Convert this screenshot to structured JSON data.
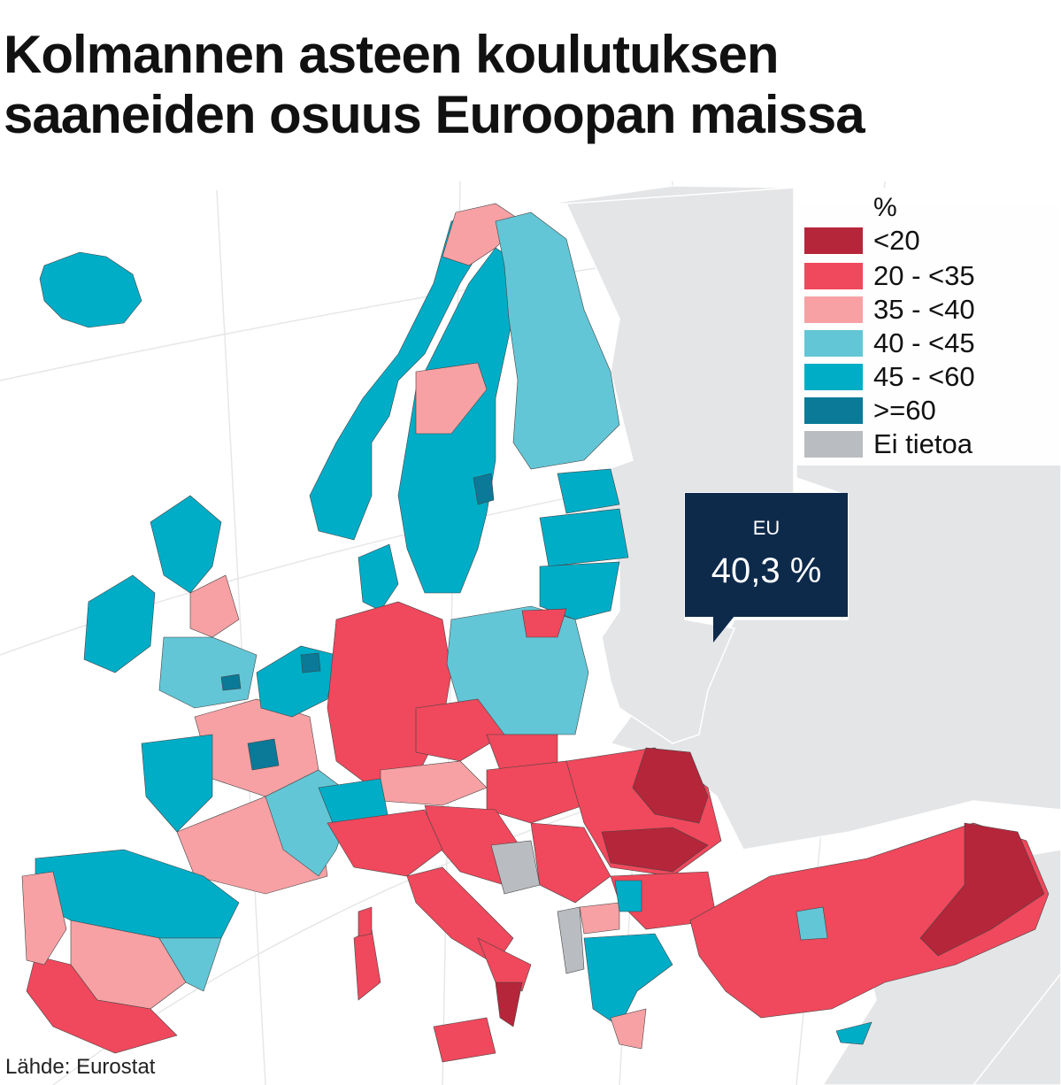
{
  "title_lines": [
    "Kolmannen asteen koulutuksen",
    "saaneiden osuus Euroopan maissa"
  ],
  "legend": {
    "unit": "%",
    "items": [
      {
        "label": "<20",
        "color": "#b5263a"
      },
      {
        "label": "20 - <35",
        "color": "#f0485c"
      },
      {
        "label": "35 - <40",
        "color": "#f7a1a4"
      },
      {
        "label": "40 - <45",
        "color": "#62c6d6"
      },
      {
        "label": "45 - <60",
        "color": "#00adc7"
      },
      {
        "label": ">=60",
        "color": "#0a7a98"
      },
      {
        "label": "Ei tietoa",
        "color": "#b9bcc0"
      }
    ]
  },
  "callout": {
    "label": "EU",
    "value": "40,3 %"
  },
  "source": "Lähde: Eurostat",
  "colors": {
    "land_outside": "#e4e5e7",
    "sea": "#ffffff"
  }
}
